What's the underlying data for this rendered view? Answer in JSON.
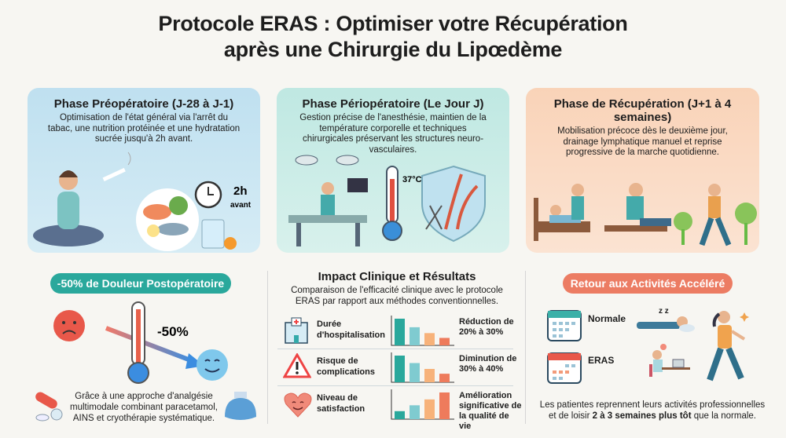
{
  "title": {
    "line1": "Protocole ERAS : Optimiser votre Récupération",
    "line2": "après une Chirurgie du Lipœdème"
  },
  "phases": [
    {
      "title": "Phase Préopératoire (J-28 à J-1)",
      "text": "Optimisation de l'état général via l'arrêt du tabac, une nutrition protéinée et une hydratation sucrée jusqu'à 2h avant.",
      "badge_value": "2h",
      "badge_label": "avant"
    },
    {
      "title": "Phase Périopératoire (Le Jour J)",
      "text": "Gestion précise de l'anesthésie, maintien de la température corporelle et techniques chirurgicales préservant les structures neuro-vasculaires.",
      "temperature": "37°C"
    },
    {
      "title": "Phase de Récupération (J+1 à 4 semaines)",
      "text": "Mobilisation précoce dès le deuxième jour, drainage lymphatique manuel et reprise progressive de la marche quotidienne."
    }
  ],
  "pain": {
    "pill": "-50% de Douleur Postopératoire",
    "value": "-50%",
    "text": "Grâce à une approche d'analgésie multimodale combinant paracetamol, AINS et cryothérapie systématique.",
    "color": "#2aa89c"
  },
  "impact": {
    "title": "Impact Clinique et Résultats",
    "subtitle": "Comparaison de l'efficacité clinique avec le protocole ERAS par rapport aux méthodes conventionnelles.",
    "rows": [
      {
        "label": "Durée d'hospitalisation",
        "result": "Réduction de 20% à 30%",
        "bars": [
          100,
          68,
          46,
          28
        ]
      },
      {
        "label": "Risque de complications",
        "result": "Diminution de 30% à 40%",
        "bars": [
          100,
          72,
          50,
          32
        ]
      },
      {
        "label": "Niveau de satisfaction",
        "result": "Amélioration significative de la qualité de vie",
        "bars": [
          30,
          52,
          74,
          100
        ]
      }
    ]
  },
  "activities": {
    "pill": "Retour aux Activités Accéléré",
    "normal": "Normale",
    "eras": "ERAS",
    "sleep": "z z",
    "text_a": "Les patientes reprennent leurs activités professionnelles",
    "text_b": "et de loisir ",
    "text_bold": "2 à 3 semaines plus tôt",
    "text_c": " que la normale.",
    "color": "#ec7c63"
  }
}
